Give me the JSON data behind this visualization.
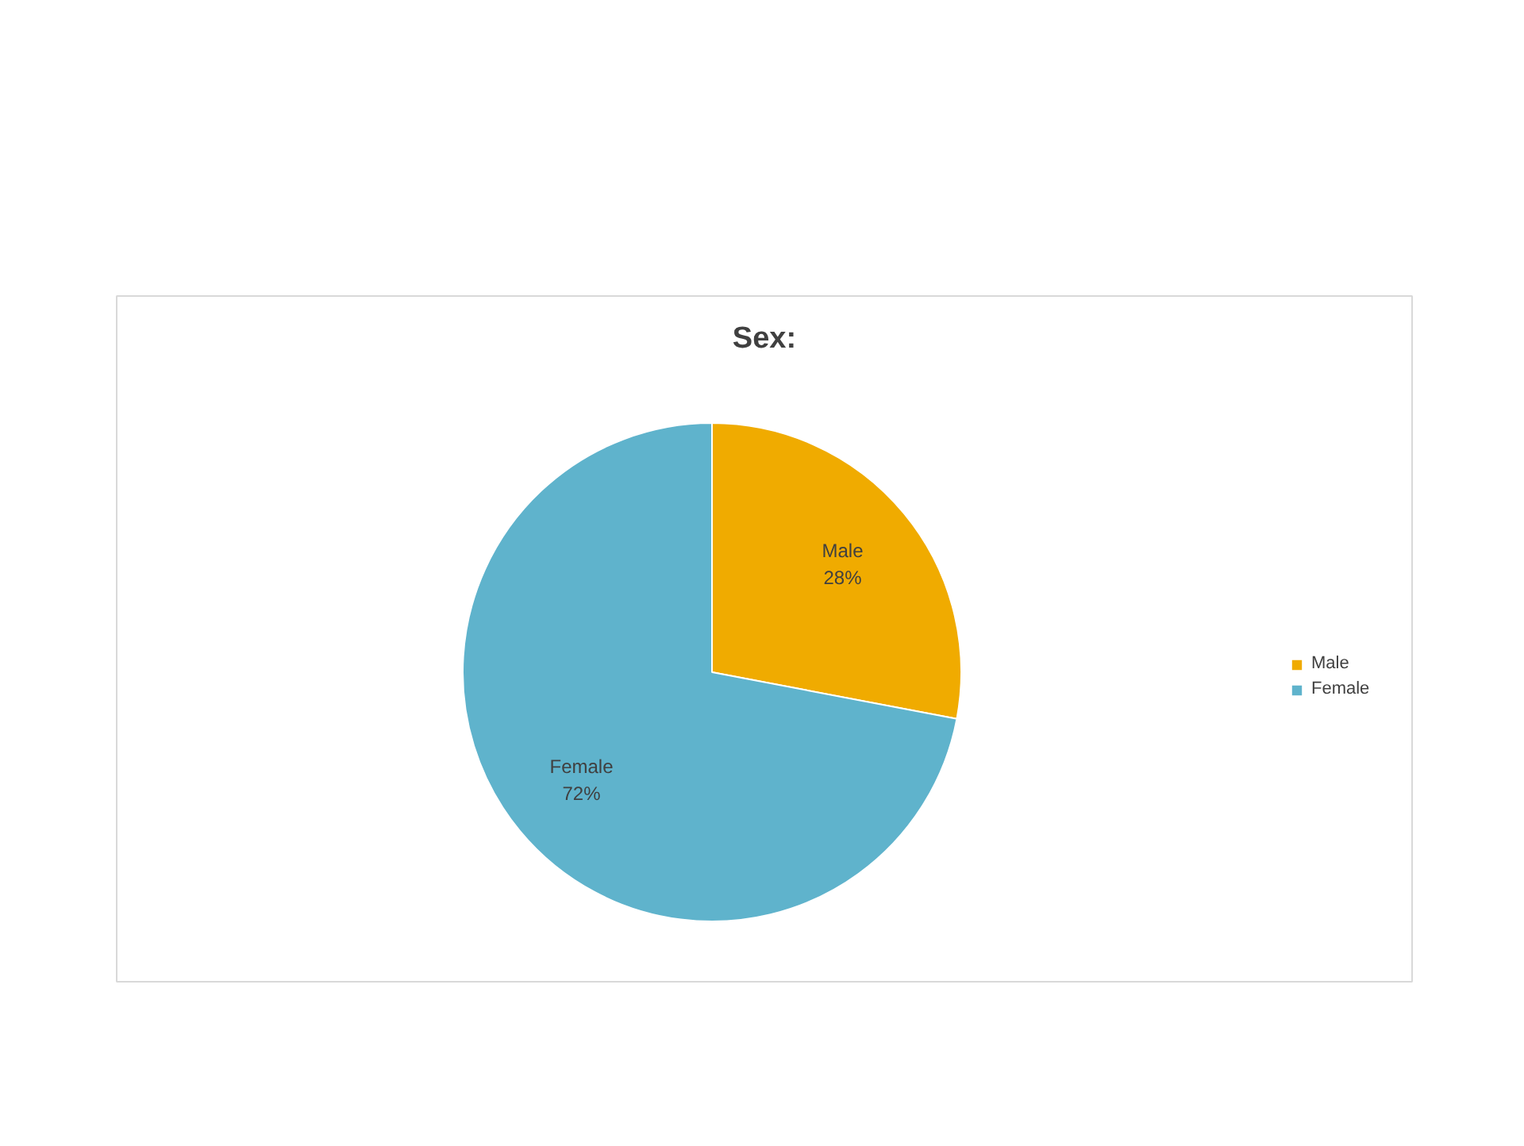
{
  "chart_data": {
    "type": "pie",
    "title": "Sex:",
    "categories": [
      "Male",
      "Female"
    ],
    "values": [
      28,
      72
    ],
    "colors": [
      "#f0ab00",
      "#5fb3cc"
    ],
    "legend": "right",
    "value_labels": [
      "28%",
      "72%"
    ]
  }
}
